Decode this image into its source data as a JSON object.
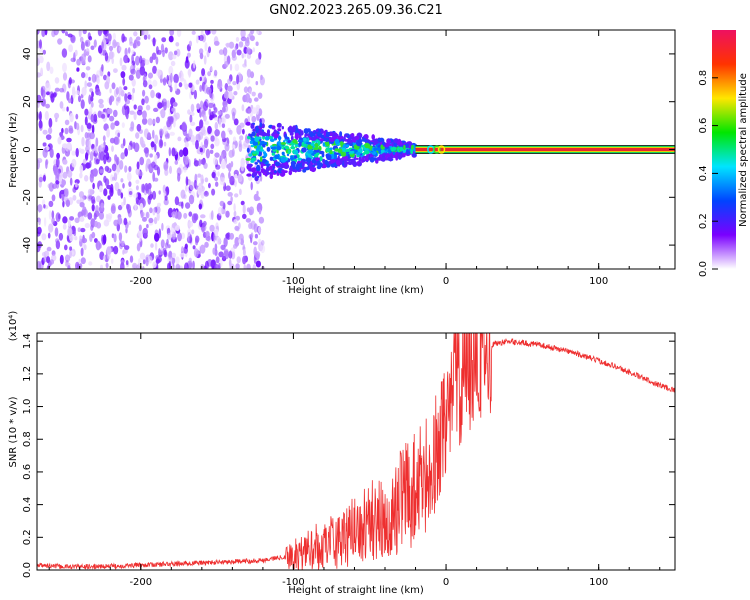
{
  "title": "GN02.2023.265.09.36.C21",
  "colors": {
    "snr_line": "#ee2f2f",
    "signal_band": "#e8282e"
  },
  "colorbar": {
    "label": "Normalized spectral amplitude",
    "ticks": [
      "0.0",
      "0.2",
      "0.4",
      "0.6",
      "0.8"
    ],
    "range": [
      0,
      1
    ],
    "gradient": [
      "#ffffff",
      "#7a00ff",
      "#0044ff",
      "#00e5ff",
      "#00e600",
      "#ffe600",
      "#ff3300",
      "#ee1060"
    ]
  },
  "chart_data": [
    {
      "type": "heatmap",
      "title": "GN02.2023.265.09.36.C21",
      "xlabel": "Height of straight line (km)",
      "ylabel": "Frequency (Hz)",
      "xlim": [
        -268,
        150
      ],
      "ylim": [
        -50,
        50
      ],
      "xticks": [
        "-200",
        "-100",
        "0",
        "100"
      ],
      "yticks": [
        "40",
        "20",
        "0",
        "-20",
        "-40"
      ],
      "grid": false,
      "colorbar_label": "Normalized spectral amplitude",
      "features": {
        "noise_region_km": [
          -268,
          -120
        ],
        "scatter_cluster_km": [
          -130,
          -20
        ],
        "constant_tone_km": [
          -20,
          150
        ],
        "tone_frequency_hz": 0
      }
    },
    {
      "type": "line",
      "xlabel": "Height of straight line (km)",
      "ylabel": "SNR (10 * v/v)",
      "y_multiplier": "(x10⁴)",
      "xlim": [
        -268,
        150
      ],
      "ylim": [
        0,
        1.45
      ],
      "xticks": [
        "-200",
        "-100",
        "0",
        "100"
      ],
      "yticks": [
        "0.0",
        "0.2",
        "0.4",
        "0.6",
        "0.8",
        "1.0",
        "1.2",
        "1.4"
      ],
      "grid": false,
      "series": [
        {
          "x": [
            -268,
            -250,
            -230,
            -200,
            -170,
            -140,
            -120,
            -100,
            -90,
            -80,
            -70,
            -60,
            -50,
            -40,
            -30,
            -20,
            -10,
            -5,
            0,
            5,
            10,
            15,
            20,
            25,
            30,
            40,
            50,
            60,
            70,
            80,
            90,
            100,
            110,
            120,
            130,
            140,
            150
          ],
          "y": [
            0.03,
            0.02,
            0.02,
            0.03,
            0.04,
            0.05,
            0.06,
            0.09,
            0.12,
            0.16,
            0.19,
            0.23,
            0.29,
            0.35,
            0.42,
            0.5,
            0.58,
            0.78,
            1.0,
            1.1,
            1.2,
            1.25,
            1.3,
            1.35,
            1.38,
            1.4,
            1.39,
            1.38,
            1.36,
            1.34,
            1.31,
            1.28,
            1.25,
            1.21,
            1.17,
            1.13,
            1.1
          ]
        }
      ]
    }
  ]
}
